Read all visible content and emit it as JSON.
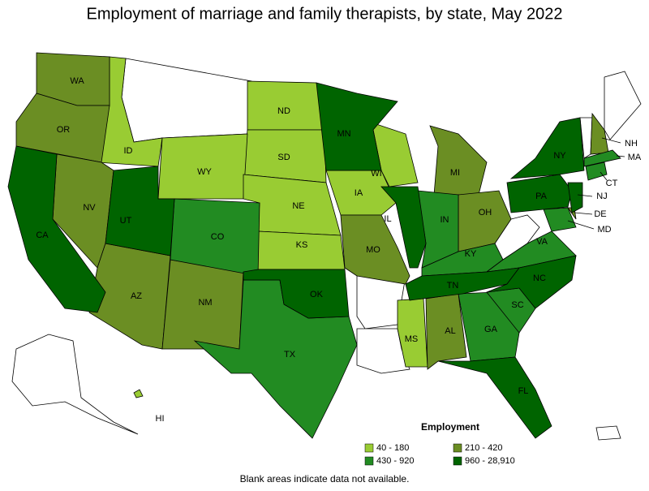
{
  "title": "Employment of marriage and family therapists, by state, May 2022",
  "legend": {
    "title": "Employment",
    "items": [
      {
        "label": "40 - 180",
        "color": "#99cc33",
        "states": [
          "ID",
          "ND",
          "SD",
          "WY",
          "NE",
          "KS",
          "IA",
          "WI",
          "MS",
          "HI"
        ]
      },
      {
        "label": "210 - 420",
        "color": "#6b8e23",
        "states": [
          "WA",
          "OR",
          "NV",
          "AZ",
          "NM",
          "MO",
          "MI",
          "OH",
          "AL",
          "NH",
          "DE"
        ]
      },
      {
        "label": "430 - 920",
        "color": "#228b22",
        "states": [
          "CO",
          "TX",
          "IN",
          "KY",
          "VA",
          "GA",
          "SC",
          "MA",
          "CT",
          "MD"
        ]
      },
      {
        "label": "960 - 28,910",
        "color": "#006400",
        "states": [
          "CA",
          "UT",
          "MN",
          "IL",
          "OK",
          "TN",
          "NC",
          "FL",
          "NY",
          "PA",
          "NJ"
        ]
      }
    ]
  },
  "footnote": "Blank areas indicate data not available."
}
